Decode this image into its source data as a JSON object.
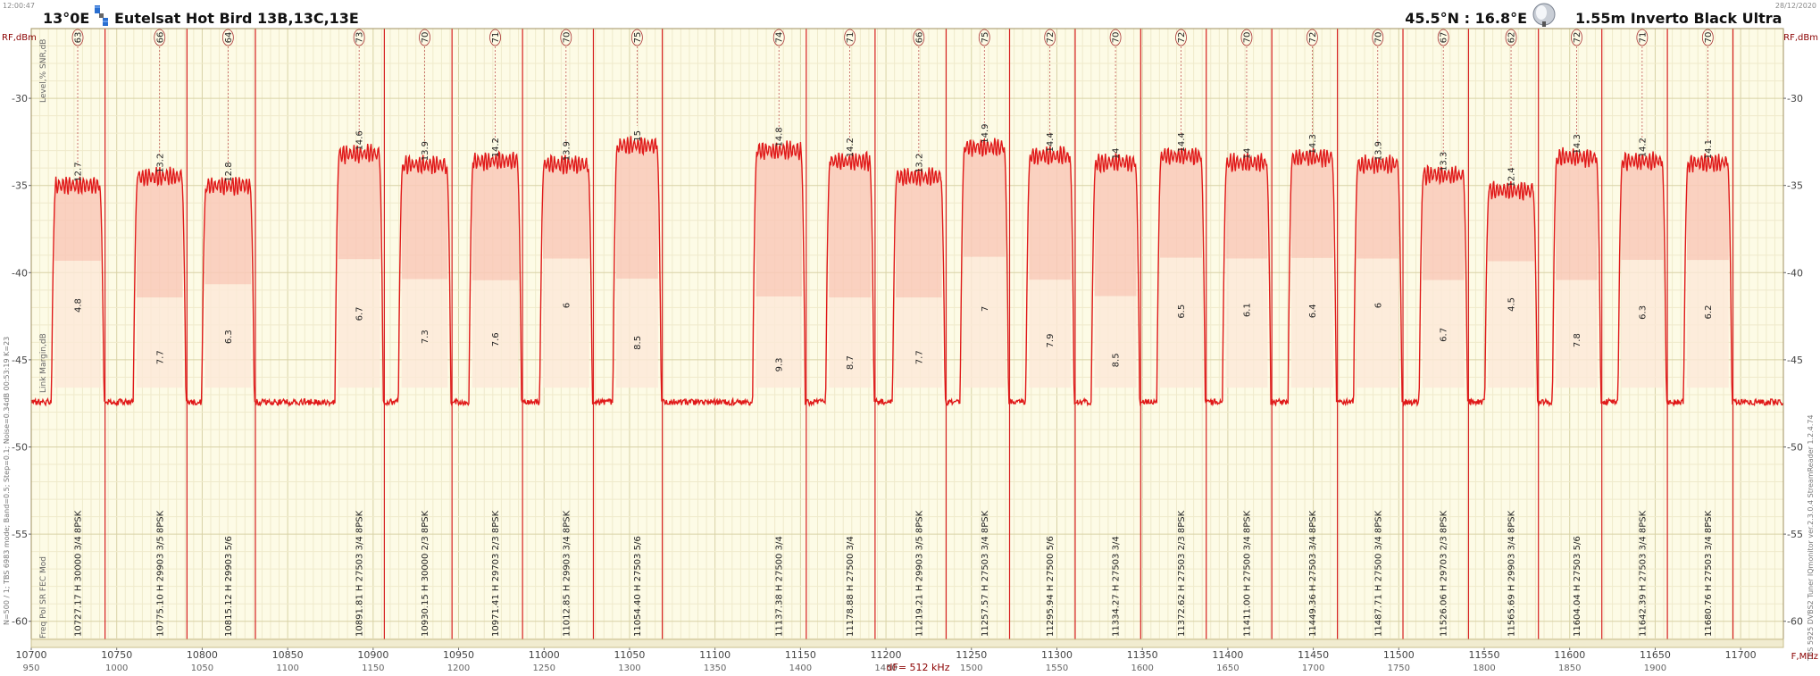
{
  "header": {
    "time": "12:00:47",
    "date": "28/12/2020",
    "position": "13°0E",
    "satellite": "Eutelsat Hot Bird 13B,13C,13E",
    "coords": "45.5°N : 16.8°E",
    "dish": "1.55m  Inverto Black Ultra"
  },
  "side_text": {
    "left_top": "Level,%  SNR,dB",
    "left_mid": "Link Margin,dB",
    "left_bottom": "N=500 / 1; TBS 6983 mode; Band=0.5; Step=0.1; Noise=0.34dB  00:53:19  K=23",
    "left_fields": "Freq  Pol   SR  FEC  Mod",
    "right_bottom": "TBS 5925 DVBS2 Tuner   IQmonitor  ver.2.3.0.4  StreamReader 1.2.4.74"
  },
  "chart_data": {
    "type": "area",
    "title": "",
    "ylabel": "RF,dBm",
    "xlabel": "F,MHz",
    "ylim": [
      -61.5,
      -26
    ],
    "xlim": [
      10700,
      11725
    ],
    "y_ticks": [
      -30,
      -35,
      -40,
      -45,
      -50,
      -55,
      -60
    ],
    "x_ticks": [
      10700,
      10750,
      10800,
      10850,
      10900,
      10950,
      11000,
      11050,
      11100,
      11150,
      11200,
      11250,
      11300,
      11350,
      11400,
      11450,
      11500,
      11550,
      11600,
      11650,
      11700
    ],
    "x2_ticks": [
      950,
      1000,
      1050,
      1100,
      1150,
      1200,
      1250,
      1300,
      1350,
      1400,
      1450,
      1500,
      1550,
      1600,
      1650,
      1700,
      1750,
      1800,
      1850,
      1900
    ],
    "x2_offset": 9750,
    "bandwidth_label": "dF= 512 kHz",
    "noise_floor": -47.6,
    "grid": true,
    "transponders": [
      {
        "freq": "10727.17",
        "pol": "H",
        "sr": "30000",
        "fec": "3/4",
        "mod": "8PSK",
        "level": 63,
        "snr": 12.7,
        "margin": 4.8,
        "center": 10727.17,
        "width": 30,
        "top": -35.0
      },
      {
        "freq": "10775.10",
        "pol": "H",
        "sr": "29903",
        "fec": "3/5",
        "mod": "8PSK",
        "level": 66,
        "snr": 13.2,
        "margin": 7.7,
        "center": 10775.1,
        "width": 30,
        "top": -34.5
      },
      {
        "freq": "10815.12",
        "pol": "H",
        "sr": "29903",
        "fec": "5/6",
        "mod": "",
        "level": 64,
        "snr": 12.8,
        "margin": 6.3,
        "center": 10815.12,
        "width": 30,
        "top": -35.0
      },
      {
        "freq": "10891.81",
        "pol": "H",
        "sr": "27503",
        "fec": "3/4",
        "mod": "8PSK",
        "level": 73,
        "snr": 14.6,
        "margin": 6.7,
        "center": 10891.81,
        "width": 27.5,
        "top": -33.2
      },
      {
        "freq": "10930.15",
        "pol": "H",
        "sr": "30000",
        "fec": "2/3",
        "mod": "8PSK",
        "level": 70,
        "snr": 13.9,
        "margin": 7.3,
        "center": 10930.15,
        "width": 30,
        "top": -33.8
      },
      {
        "freq": "10971.41",
        "pol": "H",
        "sr": "29703",
        "fec": "2/3",
        "mod": "8PSK",
        "level": 71,
        "snr": 14.2,
        "margin": 7.6,
        "center": 10971.41,
        "width": 30,
        "top": -33.6
      },
      {
        "freq": "11012.85",
        "pol": "H",
        "sr": "29903",
        "fec": "3/4",
        "mod": "8PSK",
        "level": 70,
        "snr": 13.9,
        "margin": 6,
        "center": 11012.85,
        "width": 30,
        "top": -33.8
      },
      {
        "freq": "11054.40",
        "pol": "H",
        "sr": "27503",
        "fec": "5/6",
        "mod": "",
        "level": 75,
        "snr": 15,
        "margin": 8.5,
        "center": 11054.4,
        "width": 27.5,
        "top": -32.7
      },
      {
        "freq": "11137.38",
        "pol": "H",
        "sr": "27500",
        "fec": "3/4",
        "mod": "",
        "level": 74,
        "snr": 14.8,
        "margin": 9.3,
        "center": 11137.38,
        "width": 30,
        "top": -33.0
      },
      {
        "freq": "11178.88",
        "pol": "H",
        "sr": "27500",
        "fec": "3/4",
        "mod": "",
        "level": 71,
        "snr": 14.2,
        "margin": 8.7,
        "center": 11178.88,
        "width": 27.5,
        "top": -33.6
      },
      {
        "freq": "11219.21",
        "pol": "H",
        "sr": "29903",
        "fec": "3/5",
        "mod": "8PSK",
        "level": 66,
        "snr": 13.2,
        "margin": 7.7,
        "center": 11219.21,
        "width": 30,
        "top": -34.5
      },
      {
        "freq": "11257.57",
        "pol": "H",
        "sr": "27503",
        "fec": "3/4",
        "mod": "8PSK",
        "level": 75,
        "snr": 14.9,
        "margin": 7,
        "center": 11257.57,
        "width": 27.5,
        "top": -32.8
      },
      {
        "freq": "11295.94",
        "pol": "H",
        "sr": "27500",
        "fec": "5/6",
        "mod": "",
        "level": 72,
        "snr": 14.4,
        "margin": 7.9,
        "center": 11295.94,
        "width": 27.5,
        "top": -33.3
      },
      {
        "freq": "11334.27",
        "pol": "H",
        "sr": "27503",
        "fec": "3/4",
        "mod": "",
        "level": 70,
        "snr": 14,
        "margin": 8.5,
        "center": 11334.27,
        "width": 27.5,
        "top": -33.7
      },
      {
        "freq": "11372.62",
        "pol": "H",
        "sr": "27503",
        "fec": "2/3",
        "mod": "8PSK",
        "level": 72,
        "snr": 14.4,
        "margin": 6.5,
        "center": 11372.62,
        "width": 27.5,
        "top": -33.3
      },
      {
        "freq": "11411.00",
        "pol": "H",
        "sr": "27500",
        "fec": "3/4",
        "mod": "8PSK",
        "level": 70,
        "snr": 14,
        "margin": 6.1,
        "center": 11411.0,
        "width": 27.5,
        "top": -33.7
      },
      {
        "freq": "11449.36",
        "pol": "H",
        "sr": "27503",
        "fec": "3/4",
        "mod": "8PSK",
        "level": 72,
        "snr": 14.3,
        "margin": 6.4,
        "center": 11449.36,
        "width": 27.5,
        "top": -33.4
      },
      {
        "freq": "11487.71",
        "pol": "H",
        "sr": "27500",
        "fec": "3/4",
        "mod": "8PSK",
        "level": 70,
        "snr": 13.9,
        "margin": 6,
        "center": 11487.71,
        "width": 27.5,
        "top": -33.8
      },
      {
        "freq": "11526.06",
        "pol": "H",
        "sr": "29703",
        "fec": "2/3",
        "mod": "8PSK",
        "level": 67,
        "snr": 13.3,
        "margin": 6.7,
        "center": 11526.06,
        "width": 27.5,
        "top": -34.4
      },
      {
        "freq": "11565.69",
        "pol": "H",
        "sr": "29903",
        "fec": "3/4",
        "mod": "8PSK",
        "level": 62,
        "snr": 12.4,
        "margin": 4.5,
        "center": 11565.69,
        "width": 30,
        "top": -35.3
      },
      {
        "freq": "11604.04",
        "pol": "H",
        "sr": "27503",
        "fec": "5/6",
        "mod": "",
        "level": 72,
        "snr": 14.3,
        "margin": 7.8,
        "center": 11604.04,
        "width": 27.5,
        "top": -33.4
      },
      {
        "freq": "11642.39",
        "pol": "H",
        "sr": "27503",
        "fec": "3/4",
        "mod": "8PSK",
        "level": 71,
        "snr": 14.2,
        "margin": 6.3,
        "center": 11642.39,
        "width": 27.5,
        "top": -33.6
      },
      {
        "freq": "11680.76",
        "pol": "H",
        "sr": "27503",
        "fec": "3/4",
        "mod": "8PSK",
        "level": 70,
        "snr": 14.1,
        "margin": 6.2,
        "center": 11680.76,
        "width": 27.5,
        "top": -33.7
      }
    ]
  }
}
